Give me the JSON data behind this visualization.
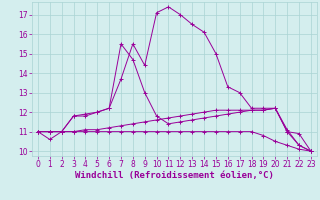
{
  "x_values": [
    0,
    1,
    2,
    3,
    4,
    5,
    6,
    7,
    8,
    9,
    10,
    11,
    12,
    13,
    14,
    15,
    16,
    17,
    18,
    19,
    20,
    21,
    22,
    23
  ],
  "line1": [
    11.0,
    10.6,
    11.0,
    11.8,
    11.8,
    12.0,
    12.2,
    15.5,
    14.7,
    13.0,
    11.8,
    11.4,
    11.5,
    11.6,
    11.7,
    11.8,
    11.9,
    12.0,
    12.1,
    12.1,
    12.2,
    11.0,
    10.3,
    10.0
  ],
  "line2": [
    11.0,
    11.0,
    11.0,
    11.8,
    11.9,
    12.0,
    12.2,
    13.7,
    15.5,
    14.4,
    17.1,
    17.4,
    17.0,
    16.5,
    16.1,
    15.0,
    13.3,
    13.0,
    12.2,
    12.2,
    12.2,
    11.0,
    10.9,
    10.0
  ],
  "line3": [
    11.0,
    11.0,
    11.0,
    11.0,
    11.1,
    11.1,
    11.2,
    11.3,
    11.4,
    11.5,
    11.6,
    11.7,
    11.8,
    11.9,
    12.0,
    12.1,
    12.1,
    12.1,
    12.1,
    12.1,
    12.2,
    11.1,
    10.3,
    10.0
  ],
  "line4": [
    11.0,
    11.0,
    11.0,
    11.0,
    11.0,
    11.0,
    11.0,
    11.0,
    11.0,
    11.0,
    11.0,
    11.0,
    11.0,
    11.0,
    11.0,
    11.0,
    11.0,
    11.0,
    11.0,
    10.8,
    10.5,
    10.3,
    10.1,
    10.0
  ],
  "line_color": "#990099",
  "bg_color": "#d4eeee",
  "grid_color": "#aad4d4",
  "xlabel": "Windchill (Refroidissement éolien,°C)",
  "ylabel_values": [
    10,
    11,
    12,
    13,
    14,
    15,
    16,
    17
  ],
  "xlim": [
    -0.5,
    23.5
  ],
  "ylim": [
    9.75,
    17.65
  ],
  "tick_fontsize": 5.5,
  "xlabel_fontsize": 6.5
}
